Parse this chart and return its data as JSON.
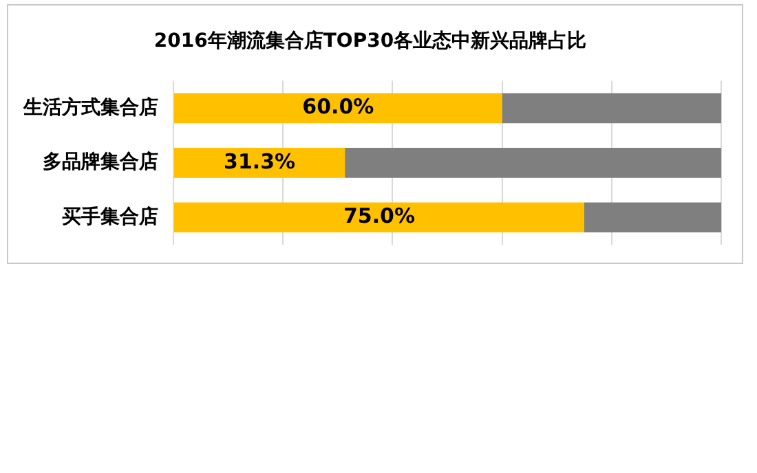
{
  "chart_data": {
    "type": "bar",
    "orientation": "horizontal",
    "stacked": true,
    "title": "2016年潮流集合店TOP30各业态中新兴品牌占比",
    "categories": [
      "生活方式集合店",
      "多品牌集合店",
      "买手集合店"
    ],
    "series": [
      {
        "color": "#ffc000",
        "values": [
          60.0,
          31.3,
          75.0
        ],
        "value_labels": [
          "60.0%",
          "31.3%",
          "75.0%"
        ]
      },
      {
        "color": "#7f7f7f",
        "values": [
          40.0,
          68.7,
          25.0
        ]
      }
    ],
    "xlim": [
      0,
      100
    ],
    "xticks": [
      {
        "value": 0,
        "label": null
      },
      {
        "value": 20,
        "label": null
      },
      {
        "value": 40,
        "label": null
      },
      {
        "value": 60,
        "label": null
      },
      {
        "value": 80,
        "label": null
      },
      {
        "value": 100,
        "label": null
      }
    ],
    "grid": "x",
    "tick_labels": "y",
    "legend": false
  }
}
